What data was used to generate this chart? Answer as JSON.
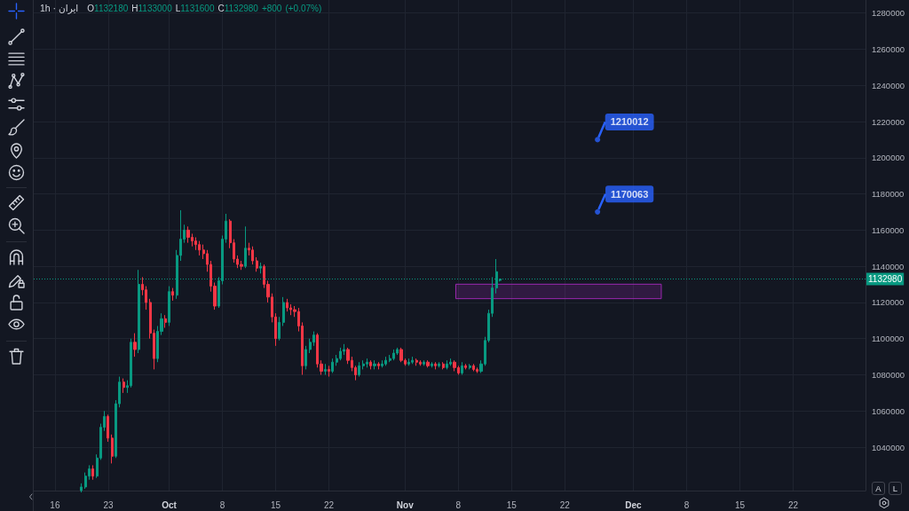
{
  "chart_data": {
    "type": "candlestick",
    "title": "1h · ایران",
    "subtitle": "O1132180 H1133000 L1131600 C1132980 +800 (+0.07%)",
    "x": [
      "--09-19T12:00",
      "--09-20T00:00",
      "--09-20T12:00",
      "--09-21T00:00",
      "--09-21T12:00",
      "--09-22T00:00",
      "--09-22T12:00",
      "--09-23T00:00",
      "--09-23T12:00",
      "--09-24T00:00",
      "--09-24T12:00",
      "--09-25T00:00",
      "--09-25T12:00",
      "--09-26T00:00",
      "--09-26T12:00",
      "--09-27T00:00",
      "--09-27T12:00",
      "--09-28T00:00",
      "--09-28T12:00",
      "--09-29T00:00",
      "--09-29T12:00",
      "--09-30T00:00",
      "--09-30T12:00",
      "--10-01T00:00",
      "--10-01T12:00",
      "--10-02T00:00",
      "--10-02T12:00",
      "--10-03T00:00",
      "--10-03T12:00",
      "--10-04T00:00",
      "--10-04T12:00",
      "--10-05T00:00",
      "--10-05T12:00",
      "--10-06T00:00",
      "--10-06T12:00",
      "--10-07T00:00",
      "--10-07T12:00",
      "--10-08T00:00",
      "--10-08T12:00",
      "--10-09T00:00",
      "--10-09T12:00",
      "--10-10T00:00",
      "--10-10T12:00",
      "--10-11T00:00",
      "--10-11T12:00",
      "--10-12T00:00",
      "--10-12T12:00",
      "--10-13T00:00",
      "--10-13T12:00",
      "--10-14T00:00",
      "--10-14T12:00",
      "--10-15T00:00",
      "--10-15T12:00",
      "--10-16T00:00",
      "--10-16T12:00",
      "--10-17T00:00",
      "--10-17T12:00",
      "--10-18T00:00",
      "--10-18T12:00",
      "--10-19T00:00",
      "--10-19T12:00",
      "--10-20T00:00",
      "--10-20T12:00",
      "--10-21T00:00",
      "--10-21T12:00",
      "--10-22T00:00",
      "--10-22T12:00",
      "--10-23T00:00",
      "--10-23T12:00",
      "--10-24T00:00",
      "--10-24T12:00",
      "--10-25T00:00",
      "--10-25T12:00",
      "--10-26T00:00",
      "--10-26T12:00",
      "--10-27T00:00",
      "--10-27T12:00",
      "--10-28T00:00",
      "--10-28T12:00",
      "--10-29T00:00",
      "--10-29T12:00",
      "--10-30T00:00",
      "--10-30T12:00",
      "--10-31T00:00",
      "--10-31T12:00",
      "--11-01T00:00",
      "--11-01T12:00",
      "--11-02T00:00",
      "--11-02T12:00",
      "--11-03T00:00",
      "--11-03T12:00",
      "--11-04T00:00",
      "--11-04T12:00",
      "--11-05T00:00",
      "--11-05T12:00",
      "--11-06T00:00",
      "--11-06T12:00",
      "--11-07T00:00",
      "--11-07T12:00",
      "--11-08T00:00",
      "--11-08T12:00",
      "--11-09T00:00",
      "--11-09T12:00",
      "--11-10T00:00",
      "--11-10T12:00",
      "--11-11T00:00",
      "--11-11T12:00",
      "--11-12T00:00",
      "--11-12T12:00",
      "--11-13T00:00",
      "--11-13T11:00"
    ],
    "ohlc": [
      [
        1016000,
        1020000,
        1015000,
        1018000
      ],
      [
        1018000,
        1026000,
        1017000,
        1024000
      ],
      [
        1024000,
        1030000,
        1022000,
        1028000
      ],
      [
        1028000,
        1030000,
        1022000,
        1024000
      ],
      [
        1024000,
        1036000,
        1023000,
        1034000
      ],
      [
        1034000,
        1053000,
        1033000,
        1051000
      ],
      [
        1051000,
        1060000,
        1049000,
        1057000
      ],
      [
        1057000,
        1058000,
        1043000,
        1045000
      ],
      [
        1045000,
        1047000,
        1031000,
        1035000
      ],
      [
        1035000,
        1066000,
        1034000,
        1064000
      ],
      [
        1064000,
        1079000,
        1062000,
        1076000
      ],
      [
        1076000,
        1078000,
        1070000,
        1073000
      ],
      [
        1073000,
        1077000,
        1070000,
        1074000
      ],
      [
        1074000,
        1100000,
        1073000,
        1098000
      ],
      [
        1098000,
        1103000,
        1090000,
        1094000
      ],
      [
        1094000,
        1138000,
        1092000,
        1130000
      ],
      [
        1130000,
        1134000,
        1124000,
        1127000
      ],
      [
        1127000,
        1129000,
        1116000,
        1120000
      ],
      [
        1120000,
        1122000,
        1100000,
        1103000
      ],
      [
        1103000,
        1105000,
        1083000,
        1089000
      ],
      [
        1089000,
        1107000,
        1087000,
        1104000
      ],
      [
        1104000,
        1114000,
        1102000,
        1111000
      ],
      [
        1111000,
        1113000,
        1106000,
        1109000
      ],
      [
        1109000,
        1129000,
        1107000,
        1126000
      ],
      [
        1126000,
        1128000,
        1121000,
        1124000
      ],
      [
        1124000,
        1149000,
        1122000,
        1146000
      ],
      [
        1146000,
        1171000,
        1143000,
        1155000
      ],
      [
        1155000,
        1163000,
        1153000,
        1160000
      ],
      [
        1160000,
        1162000,
        1153000,
        1156000
      ],
      [
        1156000,
        1158000,
        1151000,
        1154000
      ],
      [
        1154000,
        1156000,
        1149000,
        1152000
      ],
      [
        1152000,
        1154000,
        1146000,
        1149000
      ],
      [
        1149000,
        1152000,
        1144000,
        1147000
      ],
      [
        1147000,
        1149000,
        1137000,
        1141000
      ],
      [
        1141000,
        1143000,
        1126000,
        1129000
      ],
      [
        1129000,
        1131000,
        1116000,
        1118000
      ],
      [
        1118000,
        1134000,
        1117000,
        1132000
      ],
      [
        1132000,
        1157000,
        1130000,
        1155000
      ],
      [
        1155000,
        1169000,
        1153000,
        1165000
      ],
      [
        1165000,
        1166000,
        1150000,
        1153000
      ],
      [
        1153000,
        1155000,
        1142000,
        1144000
      ],
      [
        1144000,
        1146000,
        1139000,
        1141000
      ],
      [
        1141000,
        1143000,
        1138000,
        1140000
      ],
      [
        1140000,
        1162000,
        1139000,
        1150000
      ],
      [
        1150000,
        1153000,
        1146000,
        1149000
      ],
      [
        1149000,
        1151000,
        1141000,
        1143000
      ],
      [
        1143000,
        1145000,
        1137000,
        1139000
      ],
      [
        1139000,
        1142000,
        1136000,
        1140000
      ],
      [
        1140000,
        1141000,
        1128000,
        1130000
      ],
      [
        1130000,
        1132000,
        1120000,
        1123000
      ],
      [
        1123000,
        1125000,
        1109000,
        1112000
      ],
      [
        1112000,
        1114000,
        1096000,
        1100000
      ],
      [
        1100000,
        1112000,
        1099000,
        1109000
      ],
      [
        1109000,
        1123000,
        1107000,
        1120000
      ],
      [
        1120000,
        1122000,
        1115000,
        1117000
      ],
      [
        1117000,
        1119000,
        1113000,
        1116000
      ],
      [
        1116000,
        1118000,
        1112000,
        1115000
      ],
      [
        1115000,
        1117000,
        1104000,
        1107000
      ],
      [
        1107000,
        1109000,
        1080000,
        1085000
      ],
      [
        1085000,
        1096000,
        1083000,
        1094000
      ],
      [
        1094000,
        1100000,
        1092000,
        1098000
      ],
      [
        1098000,
        1104000,
        1096000,
        1102000
      ],
      [
        1102000,
        1103000,
        1084000,
        1086000
      ],
      [
        1086000,
        1088000,
        1080000,
        1082000
      ],
      [
        1082000,
        1086000,
        1080000,
        1083000
      ],
      [
        1083000,
        1085000,
        1079000,
        1082000
      ],
      [
        1082000,
        1089000,
        1081000,
        1087000
      ],
      [
        1087000,
        1091000,
        1085000,
        1089000
      ],
      [
        1089000,
        1095000,
        1088000,
        1093000
      ],
      [
        1093000,
        1097000,
        1091000,
        1094000
      ],
      [
        1094000,
        1095000,
        1086000,
        1088000
      ],
      [
        1088000,
        1090000,
        1082000,
        1084000
      ],
      [
        1084000,
        1085000,
        1077000,
        1080000
      ],
      [
        1080000,
        1087000,
        1079000,
        1085000
      ],
      [
        1085000,
        1088000,
        1083000,
        1086000
      ],
      [
        1086000,
        1089000,
        1084000,
        1087000
      ],
      [
        1087000,
        1088000,
        1083000,
        1085000
      ],
      [
        1085000,
        1088000,
        1083000,
        1086000
      ],
      [
        1086000,
        1087000,
        1083000,
        1085000
      ],
      [
        1085000,
        1088000,
        1084000,
        1086000
      ],
      [
        1086000,
        1090000,
        1085000,
        1088000
      ],
      [
        1088000,
        1091000,
        1087000,
        1089000
      ],
      [
        1089000,
        1094000,
        1088000,
        1092000
      ],
      [
        1092000,
        1095000,
        1091000,
        1094000
      ],
      [
        1094000,
        1095000,
        1087000,
        1088000
      ],
      [
        1088000,
        1089000,
        1085000,
        1086000
      ],
      [
        1086000,
        1089000,
        1085000,
        1087000
      ],
      [
        1087000,
        1090000,
        1086000,
        1088000
      ],
      [
        1088000,
        1089000,
        1085000,
        1087000
      ],
      [
        1087000,
        1088000,
        1085000,
        1086000
      ],
      [
        1086000,
        1088000,
        1085000,
        1087000
      ],
      [
        1087000,
        1088000,
        1084000,
        1085000
      ],
      [
        1085000,
        1087000,
        1084000,
        1086000
      ],
      [
        1086000,
        1087000,
        1083000,
        1085000
      ],
      [
        1085000,
        1087000,
        1084000,
        1086000
      ],
      [
        1086000,
        1087000,
        1083000,
        1084000
      ],
      [
        1084000,
        1088000,
        1083000,
        1086000
      ],
      [
        1086000,
        1089000,
        1085000,
        1087000
      ],
      [
        1087000,
        1088000,
        1082000,
        1084000
      ],
      [
        1084000,
        1085000,
        1080000,
        1081000
      ],
      [
        1081000,
        1087000,
        1080000,
        1085000
      ],
      [
        1085000,
        1086000,
        1083000,
        1084000
      ],
      [
        1084000,
        1086000,
        1083000,
        1085000
      ],
      [
        1085000,
        1086000,
        1082000,
        1083000
      ],
      [
        1083000,
        1084000,
        1081000,
        1082000
      ],
      [
        1082000,
        1088000,
        1081000,
        1086000
      ],
      [
        1086000,
        1101000,
        1085000,
        1099000
      ],
      [
        1099000,
        1116000,
        1098000,
        1114000
      ],
      [
        1114000,
        1134000,
        1112000,
        1128000
      ],
      [
        1128000,
        1144000,
        1125000,
        1137000
      ],
      [
        1132180,
        1133000,
        1131600,
        1132980
      ]
    ],
    "colors": [
      "#089981",
      "#089981",
      "#089981",
      "#f23645",
      "#089981",
      "#089981",
      "#089981",
      "#f23645",
      "#f23645",
      "#089981",
      "#089981",
      "#f23645",
      "#089981",
      "#089981",
      "#f23645",
      "#089981",
      "#f23645",
      "#f23645",
      "#f23645",
      "#f23645",
      "#089981",
      "#089981",
      "#f23645",
      "#089981",
      "#f23645",
      "#089981",
      "#089981",
      "#089981",
      "#f23645",
      "#f23645",
      "#f23645",
      "#f23645",
      "#f23645",
      "#f23645",
      "#f23645",
      "#f23645",
      "#089981",
      "#089981",
      "#089981",
      "#f23645",
      "#f23645",
      "#f23645",
      "#f23645",
      "#089981",
      "#f23645",
      "#f23645",
      "#f23645",
      "#089981",
      "#f23645",
      "#f23645",
      "#f23645",
      "#f23645",
      "#089981",
      "#089981",
      "#f23645",
      "#f23645",
      "#f23645",
      "#f23645",
      "#f23645",
      "#089981",
      "#089981",
      "#089981",
      "#f23645",
      "#f23645",
      "#089981",
      "#f23645",
      "#089981",
      "#089981",
      "#089981",
      "#089981",
      "#f23645",
      "#f23645",
      "#f23645",
      "#089981",
      "#089981",
      "#089981",
      "#f23645",
      "#089981",
      "#f23645",
      "#089981",
      "#089981",
      "#089981",
      "#089981",
      "#089981",
      "#f23645",
      "#f23645",
      "#089981",
      "#089981",
      "#f23645",
      "#f23645",
      "#089981",
      "#f23645",
      "#089981",
      "#f23645",
      "#089981",
      "#f23645",
      "#089981",
      "#089981",
      "#f23645",
      "#f23645",
      "#089981",
      "#f23645",
      "#089981",
      "#f23645",
      "#f23645",
      "#089981",
      "#089981",
      "#089981",
      "#089981",
      "#089981",
      "#089981"
    ],
    "series": [
      {
        "type": "scatter",
        "x": [
          "--11-26T07:00",
          "--11-26T07:00"
        ],
        "values": [
          1210012,
          1170063
        ],
        "value_labels": [
          "1210012",
          "1170063"
        ],
        "color": "#2962ff",
        "marker": "circle"
      },
      {
        "type": "line",
        "x": [
          "--11-07T16:00",
          "--12-04T16:00"
        ],
        "values": [
          null,
          null
        ],
        "lower": [
          1122100,
          1122100
        ],
        "upper": [
          1130100,
          1130100
        ],
        "color": "#9c27b0"
      }
    ],
    "xlim": [
      "--09-13T05:00",
      "--12-31T12:00"
    ],
    "xticks": [
      {
        "value": "--09-16",
        "label": "16"
      },
      {
        "value": "--09-23",
        "label": "23"
      },
      {
        "value": "--10-01",
        "label": "Oct"
      },
      {
        "value": "--10-08",
        "label": "8"
      },
      {
        "value": "--10-15",
        "label": "15"
      },
      {
        "value": "--10-22",
        "label": "22"
      },
      {
        "value": "--11-01",
        "label": "Nov"
      },
      {
        "value": "--11-08",
        "label": "8"
      },
      {
        "value": "--11-15",
        "label": "15"
      },
      {
        "value": "--11-22",
        "label": "22"
      },
      {
        "value": "--12-01",
        "label": "Dec"
      },
      {
        "value": "--12-08",
        "label": "8"
      },
      {
        "value": "--12-15",
        "label": "15"
      },
      {
        "value": "--12-22",
        "label": "22"
      }
    ],
    "ylim": [
      1016000,
      1287200
    ],
    "yticks": [
      1040000,
      1060000,
      1080000,
      1100000,
      1120000,
      1140000,
      1160000,
      1180000,
      1200000,
      1220000,
      1240000,
      1260000,
      1280000
    ],
    "grid": true,
    "ref_lines": [
      {
        "axis": "y",
        "value": 1132980,
        "label": "1132980",
        "color": "#089981",
        "line_style": "dotted"
      }
    ],
    "annotations": [
      "A",
      "L"
    ]
  }
}
